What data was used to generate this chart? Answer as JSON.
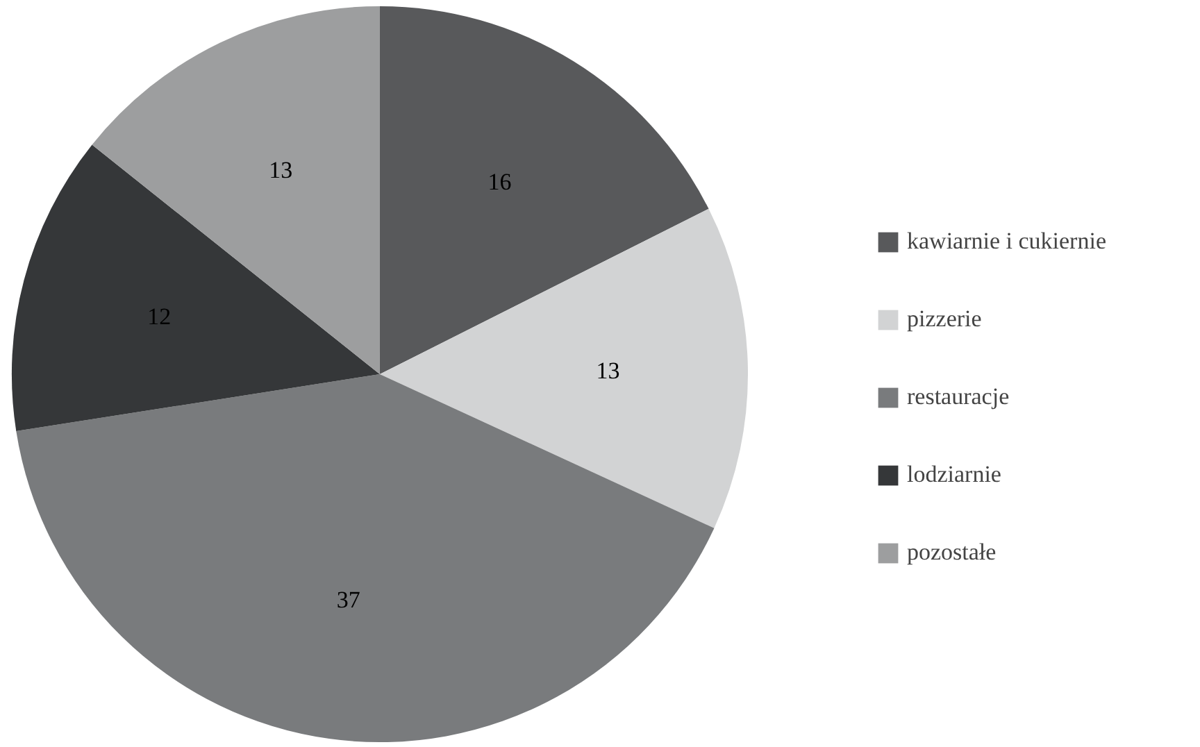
{
  "chart_data": {
    "type": "pie",
    "categories": [
      "kawiarnie i cukiernie",
      "pizzerie",
      "restauracje",
      "lodziarnie",
      "pozostałe"
    ],
    "values": [
      16,
      13,
      37,
      12,
      13
    ],
    "colors": [
      "#58595b",
      "#d2d3d4",
      "#797b7d",
      "#353739",
      "#9d9e9f"
    ],
    "data_labels": true,
    "legend": "right"
  }
}
